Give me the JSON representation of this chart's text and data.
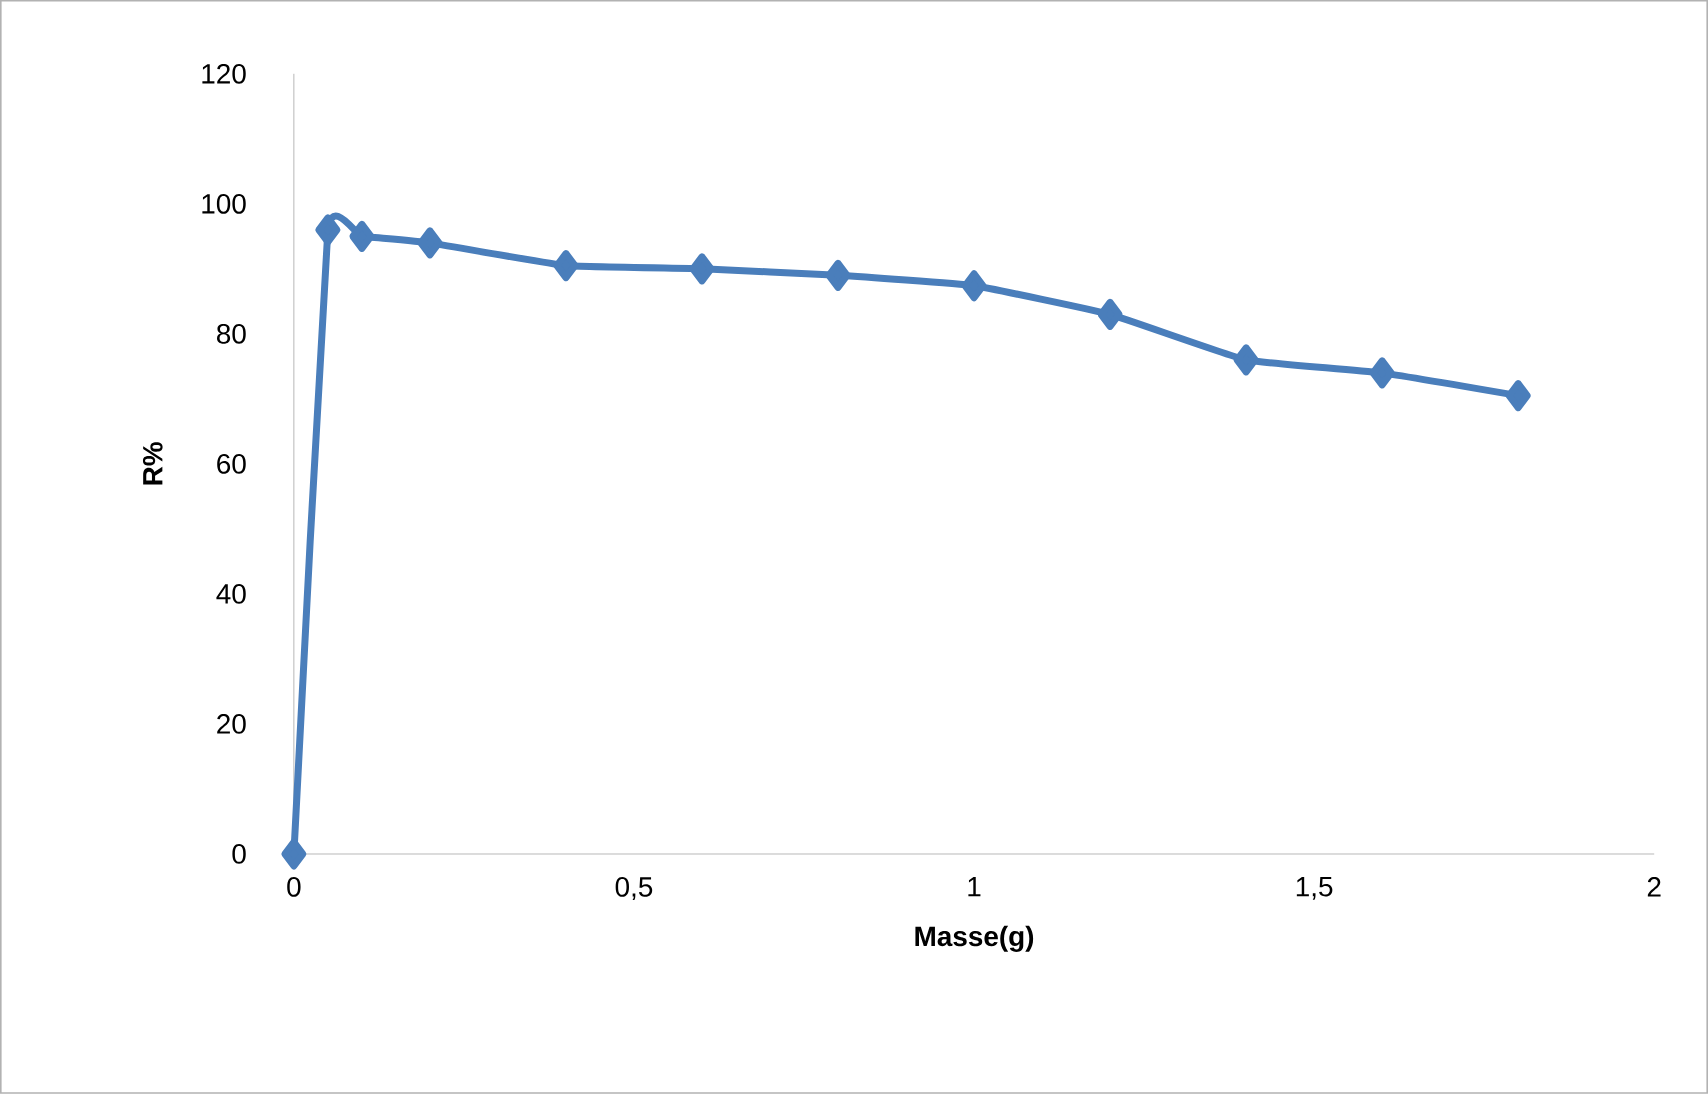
{
  "chart_data": {
    "type": "line",
    "xlabel": "Masse(g)",
    "ylabel": "R%",
    "x": [
      0,
      0.05,
      0.1,
      0.2,
      0.4,
      0.6,
      0.8,
      1.0,
      1.2,
      1.4,
      1.6,
      1.8
    ],
    "series": [
      {
        "color": "#4a7ebb",
        "values": [
          0,
          96,
          95,
          94,
          90.5,
          90,
          89,
          87.4,
          83,
          76,
          74,
          70.5
        ]
      }
    ],
    "xlim": [
      0,
      2
    ],
    "xticks": [
      0,
      {
        "value": 0.5,
        "label": "0,5"
      },
      1,
      {
        "value": 1.5,
        "label": "1,5"
      },
      2
    ],
    "ylim": [
      0,
      120
    ],
    "yticks": [
      0,
      20,
      40,
      60,
      80,
      100,
      120
    ],
    "marker": "diamond",
    "line_style": "solid"
  }
}
